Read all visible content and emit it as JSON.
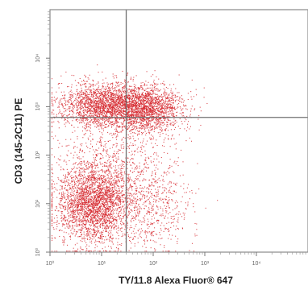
{
  "chart_data": {
    "type": "scatter",
    "title": "",
    "xlabel": "TY/11.8 Alexa Fluor® 647",
    "ylabel": "CD3 (145-2C11) PE",
    "x_scale": "log",
    "y_scale": "log",
    "xlim": [
      1,
      100000
    ],
    "ylim": [
      1,
      100000
    ],
    "x_tick_labels": [
      "10⁰",
      "10¹",
      "10²",
      "10³",
      "10⁴"
    ],
    "y_tick_labels": [
      "10⁰",
      "10¹",
      "10²",
      "10³",
      "10⁴"
    ],
    "quadrant_gate": {
      "x": 30,
      "y": 600
    },
    "populations": [
      {
        "center": [
          7,
          10
        ],
        "spread_decades": [
          0.38,
          0.42
        ],
        "approx_events": 2900
      },
      {
        "center": [
          10,
          1100
        ],
        "spread_decades": [
          0.42,
          0.24
        ],
        "approx_events": 2100
      },
      {
        "center": [
          75,
          900
        ],
        "spread_decades": [
          0.36,
          0.24
        ],
        "approx_events": 1800
      },
      {
        "center": [
          90,
          8
        ],
        "spread_decades": [
          0.4,
          0.46
        ],
        "approx_events": 550
      },
      {
        "center": [
          18,
          80
        ],
        "spread_decades": [
          0.55,
          0.45
        ],
        "approx_events": 600
      }
    ],
    "point_color": "#d6262c",
    "gate_color": "#707070",
    "grid": false,
    "legend": "none"
  }
}
